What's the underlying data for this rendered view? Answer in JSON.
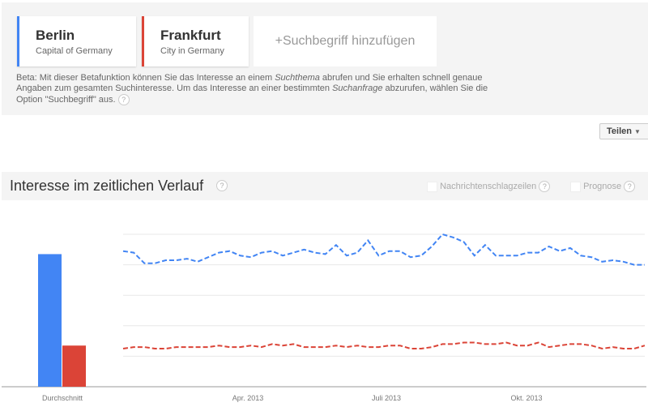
{
  "terms": [
    {
      "name": "Berlin",
      "subtitle": "Capital of Germany",
      "color": "#4285f4"
    },
    {
      "name": "Frankfurt",
      "subtitle": "City in Germany",
      "color": "#db4437"
    }
  ],
  "add_term": "+Suchbegriff hinzufügen",
  "note": {
    "p1": "Beta: Mit dieser Betafunktion können Sie das Interesse an einem ",
    "i1": "Suchthema",
    "p2": " abrufen und Sie erhalten schnell genaue Angaben zum gesamten Suchinteresse. Um das Interesse an einer bestimmten ",
    "i2": "Suchanfrage",
    "p3": " abzurufen, wählen Sie die Option \"Suchbegriff\" aus."
  },
  "help": "?",
  "share_label": "Teilen",
  "section_title": "Interesse im zeitlichen Verlauf",
  "options": {
    "news": "Nachrichtenschlagzeilen",
    "forecast": "Prognose"
  },
  "chart_data": {
    "type": "line",
    "title": "Interesse im zeitlichen Verlauf",
    "ylim": [
      0,
      100
    ],
    "x_tick_labels": [
      "Apr. 2013",
      "Juli 2013",
      "Okt. 2013"
    ],
    "average_label": "Durchschnitt",
    "averages": [
      {
        "name": "Berlin",
        "value": 87
      },
      {
        "name": "Frankfurt",
        "value": 27
      }
    ],
    "series": [
      {
        "name": "Berlin",
        "color": "#4285f4",
        "values": [
          89,
          88,
          81,
          81,
          83,
          83,
          84,
          82,
          85,
          88,
          89,
          86,
          85,
          88,
          89,
          86,
          88,
          90,
          88,
          87,
          93,
          86,
          88,
          96,
          86,
          89,
          89,
          85,
          86,
          92,
          100,
          98,
          95,
          86,
          93,
          86,
          86,
          86,
          88,
          88,
          92,
          89,
          91,
          86,
          85,
          82,
          83,
          82,
          80,
          80
        ]
      },
      {
        "name": "Frankfurt",
        "color": "#db4437",
        "values": [
          25,
          26,
          26,
          25,
          25,
          26,
          26,
          26,
          26,
          27,
          26,
          26,
          27,
          26,
          28,
          27,
          28,
          26,
          26,
          26,
          27,
          26,
          27,
          26,
          26,
          27,
          27,
          25,
          25,
          26,
          28,
          28,
          29,
          29,
          28,
          28,
          29,
          27,
          27,
          29,
          26,
          27,
          28,
          28,
          27,
          25,
          26,
          25,
          25,
          27
        ]
      }
    ]
  }
}
